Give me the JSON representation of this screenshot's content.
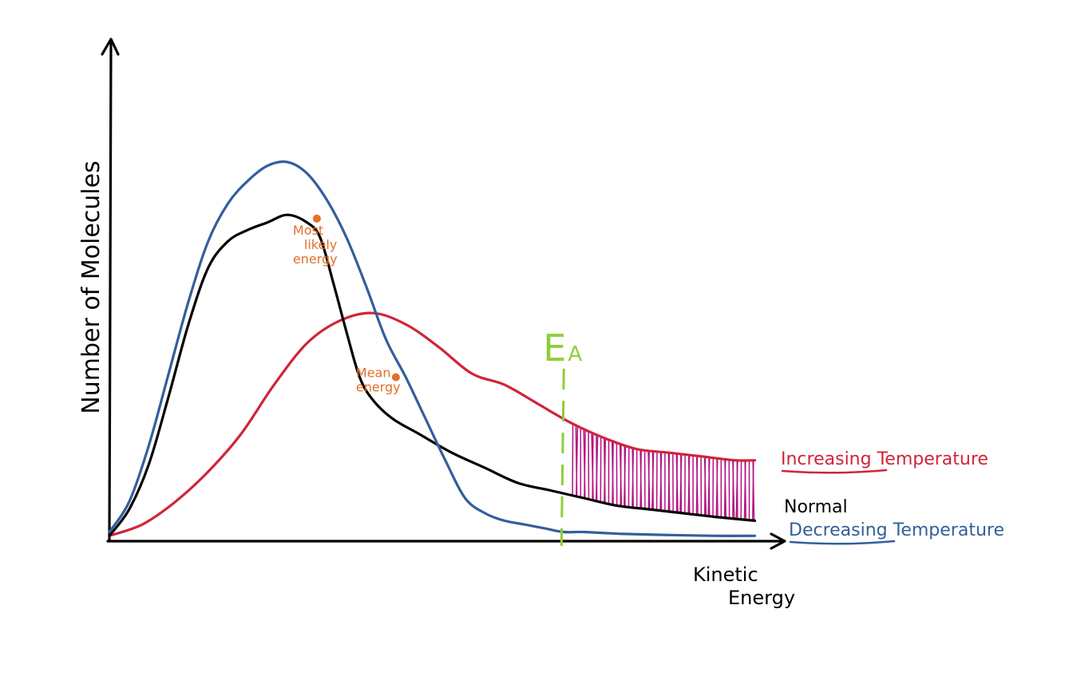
{
  "chart_data": {
    "type": "line",
    "ylabel": "Number of Molecules",
    "xlabel": "Kinetic Energy",
    "xlim": [
      0,
      100
    ],
    "ylim": [
      0,
      100
    ],
    "grid": false,
    "legend": "right-of-curve-ends",
    "colors": {
      "normal": "#000000",
      "increasing": "#d0243a",
      "decreasing": "#325f9b",
      "annotation": "#e2702b",
      "activation": "#8fce3a",
      "shade": "#b2127f"
    },
    "series": [
      {
        "name": "Increasing Temperature",
        "key": "increasing",
        "x": [
          0,
          5,
          10,
          15,
          20,
          25,
          30,
          35,
          40,
          45,
          50,
          55,
          60,
          65,
          70,
          75,
          80,
          85,
          90,
          95,
          98
        ],
        "y": [
          1,
          4,
          10,
          18,
          28,
          41,
          52,
          58,
          60,
          57,
          51,
          44,
          41,
          36,
          31,
          27,
          24,
          23,
          22,
          21,
          21
        ]
      },
      {
        "name": "Normal",
        "key": "normal",
        "x": [
          0,
          3,
          6,
          9,
          12,
          15,
          18,
          21,
          24,
          27,
          30,
          32,
          34,
          36,
          38,
          40,
          43,
          47,
          52,
          57,
          62,
          67,
          72,
          77,
          82,
          87,
          92,
          98
        ],
        "y": [
          1,
          8,
          20,
          38,
          57,
          72,
          79,
          82,
          84,
          86,
          84,
          80,
          68,
          55,
          43,
          37,
          32,
          28,
          23,
          19,
          15,
          13,
          11,
          9,
          8,
          7,
          6,
          5
        ]
      },
      {
        "name": "Decreasing Temperature",
        "key": "decreasing",
        "x": [
          0,
          3,
          6,
          9,
          12,
          15,
          18,
          21,
          24,
          27,
          30,
          33,
          36,
          39,
          42,
          45,
          48,
          51,
          54,
          57,
          60,
          63,
          66,
          69,
          72,
          78,
          85,
          92,
          98
        ],
        "y": [
          2,
          10,
          25,
          44,
          63,
          79,
          89,
          95,
          99,
          100,
          97,
          90,
          80,
          67,
          53,
          43,
          32,
          21,
          11,
          7,
          5,
          4,
          3,
          2,
          2,
          1.5,
          1.2,
          1,
          1
        ]
      }
    ],
    "activation_energy": {
      "label": "E",
      "subscript": "A",
      "x": 69
    },
    "annotations": [
      {
        "text_lines": [
          "Most",
          "likely",
          "energy"
        ],
        "series": "normal",
        "x": 31.5,
        "y": 85
      },
      {
        "text_lines": [
          "Mean",
          "energy"
        ],
        "series": "normal",
        "x": 43.5,
        "y": 43
      }
    ]
  }
}
